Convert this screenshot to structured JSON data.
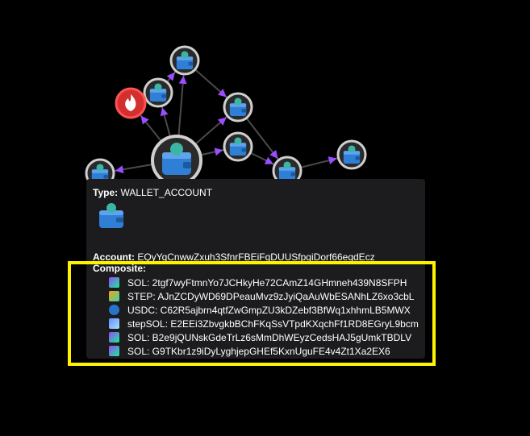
{
  "tooltip": {
    "type_label": "Type:",
    "type_value": "WALLET_ACCOUNT",
    "account_label": "Account:",
    "account_value": "EQyYqCnwwZxuh3SfnrFBEiFqDUUSfpqiDorf66eqdEcz",
    "composite_label": "Composite:",
    "tokens": [
      {
        "icon": "sol-icon",
        "text": "SOL: 2tgf7wyFtmnYo7JCHkyHe72CAmZ14GHmneh439N8SFPH"
      },
      {
        "icon": "step-icon",
        "text": "STEP: AJnZCDyWD69DPeauMvz9zJyiQaAuWbESANhLZ6xo3cbL"
      },
      {
        "icon": "usdc-icon",
        "text": "USDC: C62R5ajbrn4qtfZwGmpZU3kDZebf3BfWq1xhhmLB5MWX"
      },
      {
        "icon": "stepsol-icon",
        "text": "stepSOL: E2EEi3ZbvgkbBChFKqSsVTpdKXqchFf1RD8EGryL9bcm"
      },
      {
        "icon": "sol-icon",
        "text": "SOL: B2e9jQUNskGdeTrLz6sMmDhWEyzCedsHAJ5gUmkTBDLV"
      },
      {
        "icon": "sol-icon",
        "text": "SOL: G9TKbr1z9iDyLyghjepGHEf5KxnUguFE4v4Zt1Xa2EX6"
      }
    ]
  },
  "graph": {
    "nodes": [
      {
        "id": "center",
        "kind": "wallet-icon"
      },
      {
        "id": "top",
        "kind": "wallet-icon"
      },
      {
        "id": "upper-left",
        "kind": "wallet-icon"
      },
      {
        "id": "burn",
        "kind": "fire-icon"
      },
      {
        "id": "middle-right",
        "kind": "wallet-icon"
      },
      {
        "id": "middle",
        "kind": "wallet-icon"
      },
      {
        "id": "right-lower",
        "kind": "wallet-icon"
      },
      {
        "id": "far-right",
        "kind": "wallet-icon"
      },
      {
        "id": "left",
        "kind": "wallet-icon"
      }
    ],
    "colors": {
      "edge": "#4a4a4a",
      "arrow": "#9b4dff",
      "node_ring": "#cfcfcf",
      "wallet": "#2f7fd6",
      "fire": "#d32f2f"
    }
  },
  "highlight_color": "#fff200"
}
